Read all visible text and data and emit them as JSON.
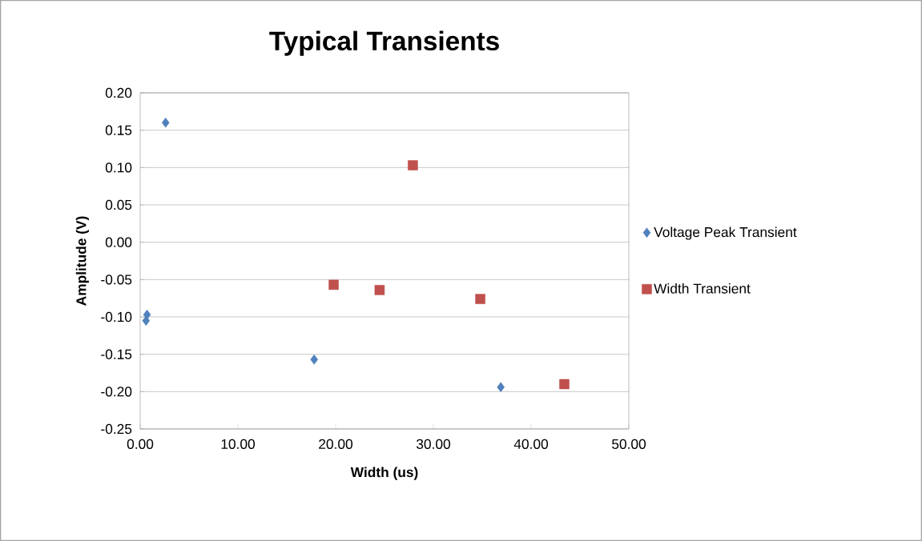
{
  "chart_data": {
    "type": "scatter",
    "title": "Typical Transients",
    "xlabel": "Width (us)",
    "ylabel": "Amplitude (V)",
    "series": [
      {
        "name": "Voltage Peak Transient",
        "color": "#4f81bd",
        "marker": "diamond",
        "x": [
          2.6,
          0.7,
          0.6,
          17.8,
          36.9
        ],
        "values": [
          0.16,
          -0.097,
          -0.105,
          -0.157,
          -0.194
        ]
      },
      {
        "name": "Width Transient",
        "color": "#c0504d",
        "marker": "square",
        "x": [
          27.9,
          19.8,
          24.5,
          34.8,
          43.4
        ],
        "values": [
          0.103,
          -0.057,
          -0.064,
          -0.076,
          -0.19
        ]
      }
    ],
    "xlim": [
      0,
      50
    ],
    "ylim": [
      -0.25,
      0.2
    ],
    "xticks": [
      {
        "value": 0,
        "label": "0.00"
      },
      {
        "value": 10,
        "label": "10.00"
      },
      {
        "value": 20,
        "label": "20.00"
      },
      {
        "value": 30,
        "label": "30.00"
      },
      {
        "value": 40,
        "label": "40.00"
      },
      {
        "value": 50,
        "label": "50.00"
      }
    ],
    "yticks": [
      {
        "value": -0.25,
        "label": "-0.25"
      },
      {
        "value": -0.2,
        "label": "-0.20"
      },
      {
        "value": -0.15,
        "label": "-0.15"
      },
      {
        "value": -0.1,
        "label": "-0.10"
      },
      {
        "value": -0.05,
        "label": "-0.05"
      },
      {
        "value": 0,
        "label": "0.00"
      },
      {
        "value": 0.05,
        "label": "0.05"
      },
      {
        "value": 0.1,
        "label": "0.10"
      },
      {
        "value": 0.15,
        "label": "0.15"
      },
      {
        "value": 0.2,
        "label": "0.20"
      }
    ],
    "grid": "y",
    "legend": "right"
  }
}
